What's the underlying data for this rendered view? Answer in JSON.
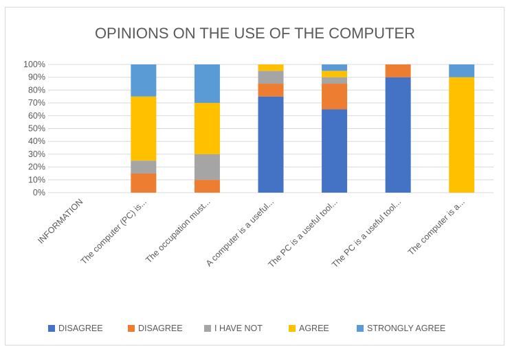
{
  "chart_data": {
    "type": "bar",
    "stacked": true,
    "title": "OPINIONS ON THE USE OF THE COMPUTER",
    "xlabel": "",
    "ylabel": "",
    "ylim": [
      0,
      100
    ],
    "yticks": [
      "0%",
      "10%",
      "20%",
      "30%",
      "40%",
      "50%",
      "60%",
      "70%",
      "80%",
      "90%",
      "100%"
    ],
    "grid": true,
    "legend_position": "bottom",
    "categories": [
      "INFORMATION",
      "The computer (PC) is...",
      "The occupation must...",
      "A computer is a useful...",
      "The PC is a useful tool...",
      "The PC is a useful tool...",
      "The computer is a..."
    ],
    "series": [
      {
        "name": "DISAGREE",
        "color": "#4472c4",
        "values": [
          0,
          0,
          0,
          75,
          65,
          90,
          0
        ]
      },
      {
        "name": "DISAGREE",
        "color": "#ed7d31",
        "values": [
          0,
          15,
          10,
          10,
          20,
          10,
          0
        ]
      },
      {
        "name": "I HAVE NOT",
        "color": "#a5a5a5",
        "values": [
          0,
          10,
          20,
          10,
          5,
          0,
          0
        ]
      },
      {
        "name": "AGREE",
        "color": "#ffc000",
        "values": [
          0,
          50,
          40,
          5,
          5,
          0,
          90
        ]
      },
      {
        "name": "STRONGLY AGREE",
        "color": "#5b9bd5",
        "values": [
          0,
          25,
          30,
          0,
          5,
          0,
          10
        ]
      }
    ]
  }
}
